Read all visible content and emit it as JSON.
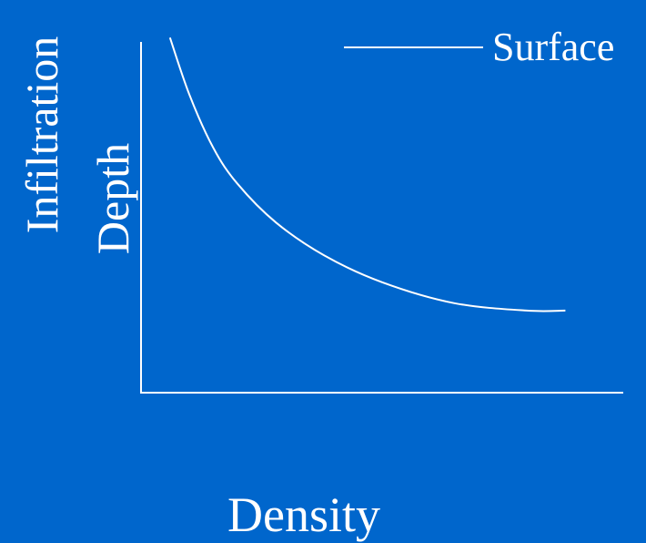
{
  "chart_data": {
    "type": "line",
    "title": "",
    "xlabel": "Density",
    "ylabel_lines": [
      "Infiltration",
      "Depth"
    ],
    "series": [
      {
        "name": "Surface",
        "color": "#ffffff",
        "x": [
          0.06,
          0.1,
          0.15,
          0.2,
          0.28,
          0.38,
          0.5,
          0.65,
          0.8,
          0.88
        ],
        "y": [
          0.99,
          0.8,
          0.62,
          0.5,
          0.37,
          0.26,
          0.17,
          0.1,
          0.075,
          0.075
        ]
      }
    ],
    "xlim": [
      0,
      1
    ],
    "ylim": [
      -0.2,
      1
    ],
    "grid": false,
    "legend": "top-right"
  },
  "colors": {
    "background": "#0066cc",
    "foreground": "#ffffff"
  }
}
